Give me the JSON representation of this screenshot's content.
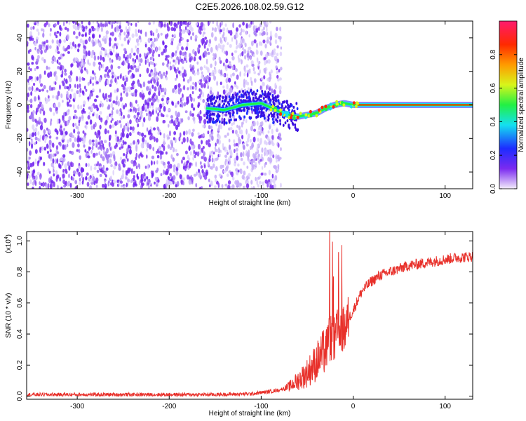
{
  "title": "C2E5.2026.108.02.59.G12",
  "chart_data": [
    {
      "type": "heatmap",
      "xlabel": "Height of straight line (km)",
      "ylabel": "Frequency (Hz)",
      "xlim": [
        -355,
        130
      ],
      "ylim": [
        -50,
        50
      ],
      "xticks": [
        -300,
        -200,
        -100,
        0,
        100
      ],
      "xtick_labels": [
        "-300",
        "-200",
        "-100",
        "0",
        "100"
      ],
      "yticks": [
        -40,
        -20,
        0,
        20,
        40
      ],
      "ytick_labels": [
        "-40",
        "-20",
        "0",
        "20",
        "40"
      ],
      "noise_region_km": [
        -355,
        -78
      ],
      "signal_ridge": {
        "x": [
          -160,
          -140,
          -120,
          -100,
          -80,
          -70,
          -60,
          -50,
          -40,
          -30,
          -20,
          -10,
          0,
          20,
          60,
          100,
          130
        ],
        "y": [
          -2,
          -3,
          0,
          1,
          -4,
          -6,
          -7,
          -6,
          -5,
          -2,
          0,
          1,
          0,
          0,
          0,
          0,
          0
        ]
      }
    },
    {
      "type": "line",
      "xlabel": "Height of straight line (km)",
      "ylabel": "SNR (10 * v/v)",
      "y_multiplier": "(x10",
      "y_multiplier_exp": "4",
      "y_multiplier_close": ")",
      "xlim": [
        -355,
        130
      ],
      "ylim": [
        -0.02,
        1.06
      ],
      "xticks": [
        -300,
        -200,
        -100,
        0,
        100
      ],
      "xtick_labels": [
        "-300",
        "-200",
        "-100",
        "0",
        "100"
      ],
      "yticks": [
        0.0,
        0.2,
        0.4,
        0.6,
        0.8,
        1.0
      ],
      "ytick_labels": [
        "0.0",
        "0.2",
        "0.4",
        "0.6",
        "0.8",
        "1.0"
      ],
      "series": [
        {
          "name": "SNR",
          "color": "#e8302a",
          "x": [
            -355,
            -300,
            -250,
            -200,
            -150,
            -110,
            -90,
            -80,
            -70,
            -60,
            -50,
            -40,
            -30,
            -25,
            -20,
            -15,
            -10,
            -5,
            0,
            5,
            10,
            20,
            30,
            40,
            50,
            60,
            70,
            80,
            90,
            100,
            110,
            120,
            130
          ],
          "y": [
            0.01,
            0.01,
            0.01,
            0.01,
            0.01,
            0.015,
            0.03,
            0.04,
            0.06,
            0.1,
            0.15,
            0.22,
            0.3,
            0.38,
            0.35,
            0.45,
            0.42,
            0.5,
            0.55,
            0.62,
            0.68,
            0.74,
            0.78,
            0.8,
            0.82,
            0.84,
            0.85,
            0.86,
            0.87,
            0.88,
            0.89,
            0.895,
            0.9
          ]
        }
      ]
    }
  ],
  "colorbar": {
    "label": "Normalized spectral amplitude",
    "ticks": [
      0.0,
      0.2,
      0.4,
      0.6,
      0.8
    ],
    "tick_labels": [
      "0.0",
      "0.2",
      "0.4",
      "0.6",
      "0.8"
    ],
    "colors": [
      "#f3ecfb",
      "#7b2bf0",
      "#1d2cff",
      "#14e0f0",
      "#22f044",
      "#d8f51a",
      "#ff9a00",
      "#ff2a00",
      "#ff1a6e"
    ]
  }
}
